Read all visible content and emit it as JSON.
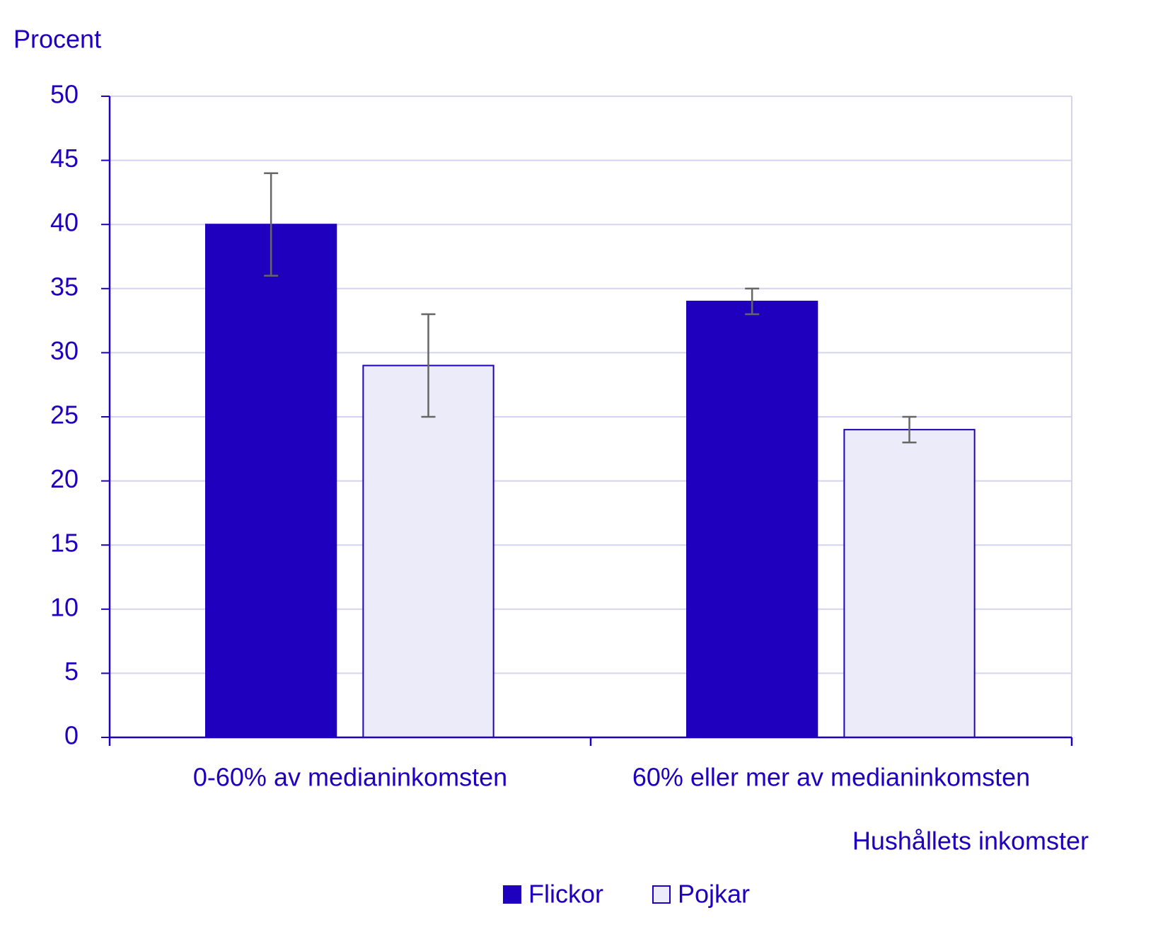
{
  "chart_data": {
    "type": "bar",
    "y_label": "Procent",
    "x_label": "Hushållets inkomster",
    "categories": [
      "0-60% av medianinkomsten",
      "60% eller mer av medianinkomsten"
    ],
    "series": [
      {
        "name": "Flickor",
        "color": "#1e00be",
        "values": [
          40,
          34
        ],
        "errors": [
          4,
          1
        ]
      },
      {
        "name": "Pojkar",
        "color": "#ebebfa",
        "values": [
          29,
          24
        ],
        "errors": [
          4,
          1
        ]
      }
    ],
    "ylim": [
      0,
      50
    ],
    "yticks": [
      0,
      5,
      10,
      15,
      20,
      25,
      30,
      35,
      40,
      45,
      50
    ],
    "grid": true,
    "legend": "bottom"
  }
}
